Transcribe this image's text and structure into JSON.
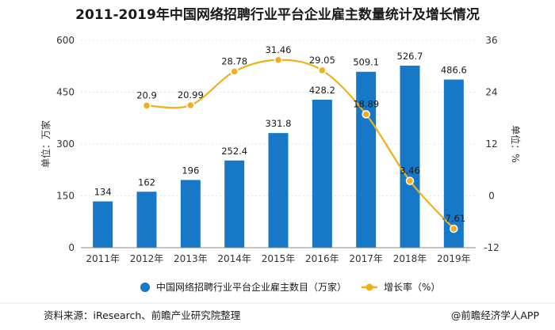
{
  "title": "2011-2019年中国网络招聘行业平台企业雇主数量统计及增长情况",
  "source_text": "资料来源：iResearch、前瞻产业研究院整理",
  "app_credit": "@前瞻经济学人APP",
  "colors": {
    "bar": "#1878c8",
    "line": "#f0b019",
    "axis": "#888888",
    "grid": "#e6e6e6"
  },
  "chart_data": {
    "type": "bar",
    "categories": [
      "2011年",
      "2012年",
      "2013年",
      "2014年",
      "2015年",
      "2016年",
      "2017年",
      "2018年",
      "2019年"
    ],
    "series": [
      {
        "name": "中国网络招聘行业平台企业雇主数目（万家）",
        "type": "bar",
        "axis": "left",
        "values": [
          134,
          162,
          196,
          252.4,
          331.8,
          428.2,
          509.1,
          526.7,
          486.6
        ],
        "labels": [
          "134",
          "162",
          "196",
          "252.4",
          "331.8",
          "428.2",
          "509.1",
          "526.7",
          "486.6"
        ]
      },
      {
        "name": "增长率（%）",
        "type": "line",
        "axis": "right",
        "values": [
          null,
          20.9,
          20.99,
          28.78,
          31.46,
          29.05,
          18.89,
          3.46,
          -7.61
        ],
        "labels": [
          "",
          "20.9",
          "20.99",
          "28.78",
          "31.46",
          "29.05",
          "18.89",
          "3.46",
          "-7.61"
        ]
      }
    ],
    "y_left": {
      "label": "单位：万家",
      "min": 0,
      "max": 600,
      "ticks": [
        "0",
        "150",
        "300",
        "450",
        "600"
      ]
    },
    "y_right": {
      "label": "单位：%",
      "min": -12,
      "max": 36,
      "ticks": [
        "-12",
        "0",
        "12",
        "24",
        "36"
      ]
    },
    "grid": false,
    "legend": "bottom"
  }
}
